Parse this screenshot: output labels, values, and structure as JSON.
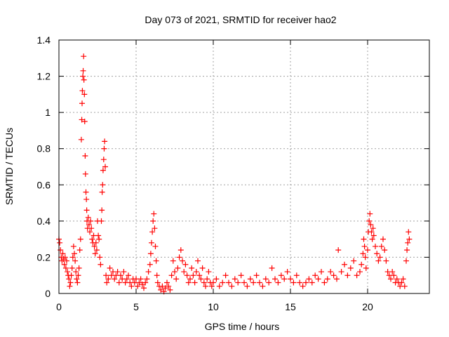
{
  "chart_data": {
    "type": "scatter",
    "title": "Day 073 of 2021, SRMTID for receiver hao2",
    "xlabel": "GPS time / hours",
    "ylabel": "SRMTID / TECUs",
    "xlim": [
      0,
      24
    ],
    "ylim": [
      0,
      1.4
    ],
    "xticks": [
      0,
      5,
      10,
      15,
      20
    ],
    "xtick_labels": [
      "0",
      "5",
      "10",
      "15",
      "20"
    ],
    "yticks": [
      0,
      0.2,
      0.4,
      0.6,
      0.8,
      1.0,
      1.2,
      1.4
    ],
    "ytick_labels": [
      "0",
      "0.2",
      "0.4",
      "0.6",
      "0.8",
      "1",
      "1.2",
      "1.4"
    ],
    "grid": true,
    "marker": "+",
    "color": "#ff0000",
    "series": [
      {
        "name": "hao2",
        "points": [
          [
            0.0,
            0.3
          ],
          [
            0.05,
            0.28
          ],
          [
            0.1,
            0.24
          ],
          [
            0.15,
            0.2
          ],
          [
            0.2,
            0.18
          ],
          [
            0.25,
            0.22
          ],
          [
            0.3,
            0.19
          ],
          [
            0.35,
            0.16
          ],
          [
            0.4,
            0.2
          ],
          [
            0.45,
            0.14
          ],
          [
            0.5,
            0.18
          ],
          [
            0.55,
            0.12
          ],
          [
            0.6,
            0.1
          ],
          [
            0.65,
            0.08
          ],
          [
            0.7,
            0.04
          ],
          [
            0.75,
            0.06
          ],
          [
            0.8,
            0.1
          ],
          [
            0.85,
            0.14
          ],
          [
            0.9,
            0.2
          ],
          [
            0.95,
            0.26
          ],
          [
            1.0,
            0.22
          ],
          [
            1.05,
            0.18
          ],
          [
            1.1,
            0.12
          ],
          [
            1.15,
            0.08
          ],
          [
            1.2,
            0.06
          ],
          [
            1.25,
            0.1
          ],
          [
            1.3,
            0.14
          ],
          [
            1.35,
            0.24
          ],
          [
            1.4,
            0.3
          ],
          [
            1.45,
            0.85
          ],
          [
            1.48,
            0.96
          ],
          [
            1.5,
            1.05
          ],
          [
            1.52,
            1.12
          ],
          [
            1.55,
            1.2
          ],
          [
            1.57,
            1.23
          ],
          [
            1.6,
            1.31
          ],
          [
            1.62,
            1.18
          ],
          [
            1.65,
            1.1
          ],
          [
            1.67,
            0.95
          ],
          [
            1.7,
            0.76
          ],
          [
            1.72,
            0.66
          ],
          [
            1.75,
            0.56
          ],
          [
            1.78,
            0.52
          ],
          [
            1.8,
            0.46
          ],
          [
            1.82,
            0.4
          ],
          [
            1.85,
            0.36
          ],
          [
            1.9,
            0.42
          ],
          [
            1.95,
            0.38
          ],
          [
            2.0,
            0.34
          ],
          [
            2.05,
            0.4
          ],
          [
            2.1,
            0.36
          ],
          [
            2.15,
            0.3
          ],
          [
            2.2,
            0.28
          ],
          [
            2.25,
            0.32
          ],
          [
            2.3,
            0.26
          ],
          [
            2.35,
            0.22
          ],
          [
            2.4,
            0.28
          ],
          [
            2.45,
            0.24
          ],
          [
            2.5,
            0.4
          ],
          [
            2.55,
            0.32
          ],
          [
            2.6,
            0.3
          ],
          [
            2.65,
            0.2
          ],
          [
            2.7,
            0.16
          ],
          [
            2.75,
            0.4
          ],
          [
            2.78,
            0.46
          ],
          [
            2.8,
            0.56
          ],
          [
            2.83,
            0.6
          ],
          [
            2.86,
            0.68
          ],
          [
            2.9,
            0.74
          ],
          [
            2.93,
            0.8
          ],
          [
            2.96,
            0.84
          ],
          [
            3.0,
            0.7
          ],
          [
            3.05,
            0.1
          ],
          [
            3.1,
            0.06
          ],
          [
            3.2,
            0.08
          ],
          [
            3.3,
            0.14
          ],
          [
            3.4,
            0.1
          ],
          [
            3.5,
            0.12
          ],
          [
            3.6,
            0.08
          ],
          [
            3.7,
            0.1
          ],
          [
            3.8,
            0.12
          ],
          [
            3.9,
            0.06
          ],
          [
            4.0,
            0.1
          ],
          [
            4.1,
            0.08
          ],
          [
            4.2,
            0.12
          ],
          [
            4.3,
            0.06
          ],
          [
            4.4,
            0.08
          ],
          [
            4.5,
            0.1
          ],
          [
            4.6,
            0.06
          ],
          [
            4.7,
            0.04
          ],
          [
            4.8,
            0.08
          ],
          [
            4.9,
            0.06
          ],
          [
            5.0,
            0.08
          ],
          [
            5.1,
            0.04
          ],
          [
            5.2,
            0.06
          ],
          [
            5.3,
            0.08
          ],
          [
            5.4,
            0.05
          ],
          [
            5.5,
            0.03
          ],
          [
            5.6,
            0.06
          ],
          [
            5.7,
            0.08
          ],
          [
            5.8,
            0.12
          ],
          [
            5.9,
            0.16
          ],
          [
            5.95,
            0.22
          ],
          [
            6.0,
            0.28
          ],
          [
            6.05,
            0.34
          ],
          [
            6.1,
            0.4
          ],
          [
            6.15,
            0.44
          ],
          [
            6.2,
            0.36
          ],
          [
            6.25,
            0.26
          ],
          [
            6.3,
            0.18
          ],
          [
            6.35,
            0.1
          ],
          [
            6.4,
            0.06
          ],
          [
            6.5,
            0.04
          ],
          [
            6.6,
            0.02
          ],
          [
            6.7,
            0.04
          ],
          [
            6.8,
            0.01
          ],
          [
            6.9,
            0.03
          ],
          [
            7.0,
            0.06
          ],
          [
            7.1,
            0.04
          ],
          [
            7.2,
            0.02
          ],
          [
            7.3,
            0.1
          ],
          [
            7.4,
            0.18
          ],
          [
            7.5,
            0.12
          ],
          [
            7.6,
            0.08
          ],
          [
            7.7,
            0.14
          ],
          [
            7.8,
            0.2
          ],
          [
            7.9,
            0.24
          ],
          [
            8.0,
            0.18
          ],
          [
            8.1,
            0.12
          ],
          [
            8.2,
            0.16
          ],
          [
            8.3,
            0.1
          ],
          [
            8.4,
            0.06
          ],
          [
            8.5,
            0.08
          ],
          [
            8.6,
            0.14
          ],
          [
            8.7,
            0.1
          ],
          [
            8.8,
            0.06
          ],
          [
            8.9,
            0.12
          ],
          [
            9.0,
            0.18
          ],
          [
            9.1,
            0.1
          ],
          [
            9.2,
            0.08
          ],
          [
            9.3,
            0.14
          ],
          [
            9.4,
            0.06
          ],
          [
            9.5,
            0.04
          ],
          [
            9.6,
            0.08
          ],
          [
            9.7,
            0.12
          ],
          [
            9.8,
            0.06
          ],
          [
            9.9,
            0.04
          ],
          [
            10.0,
            0.06
          ],
          [
            10.2,
            0.08
          ],
          [
            10.4,
            0.04
          ],
          [
            10.6,
            0.06
          ],
          [
            10.8,
            0.1
          ],
          [
            11.0,
            0.06
          ],
          [
            11.2,
            0.04
          ],
          [
            11.4,
            0.08
          ],
          [
            11.6,
            0.06
          ],
          [
            11.8,
            0.1
          ],
          [
            12.0,
            0.06
          ],
          [
            12.2,
            0.04
          ],
          [
            12.4,
            0.08
          ],
          [
            12.6,
            0.06
          ],
          [
            12.8,
            0.1
          ],
          [
            13.0,
            0.06
          ],
          [
            13.2,
            0.04
          ],
          [
            13.4,
            0.08
          ],
          [
            13.6,
            0.06
          ],
          [
            13.8,
            0.14
          ],
          [
            14.0,
            0.08
          ],
          [
            14.2,
            0.06
          ],
          [
            14.4,
            0.1
          ],
          [
            14.6,
            0.08
          ],
          [
            14.8,
            0.12
          ],
          [
            15.0,
            0.08
          ],
          [
            15.2,
            0.06
          ],
          [
            15.4,
            0.1
          ],
          [
            15.6,
            0.06
          ],
          [
            15.8,
            0.04
          ],
          [
            16.0,
            0.06
          ],
          [
            16.2,
            0.08
          ],
          [
            16.4,
            0.06
          ],
          [
            16.6,
            0.1
          ],
          [
            16.8,
            0.08
          ],
          [
            17.0,
            0.12
          ],
          [
            17.2,
            0.06
          ],
          [
            17.4,
            0.08
          ],
          [
            17.6,
            0.12
          ],
          [
            17.8,
            0.1
          ],
          [
            18.0,
            0.08
          ],
          [
            18.1,
            0.24
          ],
          [
            18.3,
            0.12
          ],
          [
            18.5,
            0.16
          ],
          [
            18.7,
            0.1
          ],
          [
            18.9,
            0.14
          ],
          [
            19.1,
            0.18
          ],
          [
            19.3,
            0.1
          ],
          [
            19.5,
            0.12
          ],
          [
            19.6,
            0.16
          ],
          [
            19.7,
            0.22
          ],
          [
            19.75,
            0.3
          ],
          [
            19.8,
            0.26
          ],
          [
            19.85,
            0.2
          ],
          [
            19.9,
            0.14
          ],
          [
            20.0,
            0.24
          ],
          [
            20.05,
            0.34
          ],
          [
            20.1,
            0.4
          ],
          [
            20.15,
            0.44
          ],
          [
            20.2,
            0.38
          ],
          [
            20.25,
            0.34
          ],
          [
            20.3,
            0.3
          ],
          [
            20.35,
            0.36
          ],
          [
            20.4,
            0.32
          ],
          [
            20.5,
            0.26
          ],
          [
            20.6,
            0.22
          ],
          [
            20.7,
            0.18
          ],
          [
            20.8,
            0.2
          ],
          [
            20.9,
            0.26
          ],
          [
            21.0,
            0.3
          ],
          [
            21.1,
            0.24
          ],
          [
            21.2,
            0.18
          ],
          [
            21.3,
            0.12
          ],
          [
            21.4,
            0.1
          ],
          [
            21.5,
            0.08
          ],
          [
            21.6,
            0.12
          ],
          [
            21.7,
            0.1
          ],
          [
            21.8,
            0.06
          ],
          [
            21.9,
            0.08
          ],
          [
            22.0,
            0.06
          ],
          [
            22.1,
            0.04
          ],
          [
            22.2,
            0.06
          ],
          [
            22.3,
            0.08
          ],
          [
            22.4,
            0.04
          ],
          [
            22.5,
            0.18
          ],
          [
            22.55,
            0.24
          ],
          [
            22.6,
            0.28
          ],
          [
            22.65,
            0.34
          ],
          [
            22.7,
            0.3
          ]
        ]
      }
    ]
  }
}
